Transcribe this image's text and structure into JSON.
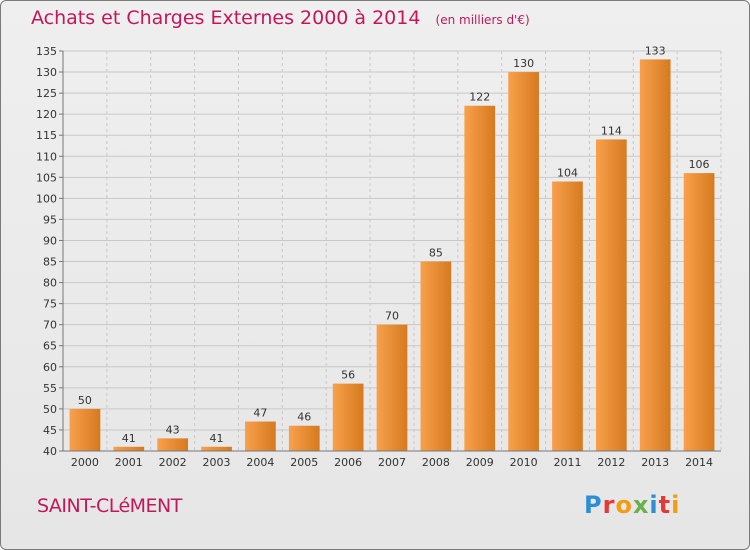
{
  "header": {
    "title": "Achats et Charges Externes 2000 à 2014",
    "unit": "(en milliers d'€)"
  },
  "footer": {
    "commune": "SAINT-CLéMENT",
    "logo": "Proxiti"
  },
  "colors": {
    "bar_light": "#f8a04c",
    "bar_dark": "#d67a1f",
    "title": "#c2185b",
    "grid": "#c8c8c8"
  },
  "chart_data": {
    "type": "bar",
    "categories": [
      "2000",
      "2001",
      "2002",
      "2003",
      "2004",
      "2005",
      "2006",
      "2007",
      "2008",
      "2009",
      "2010",
      "2011",
      "2012",
      "2013",
      "2014"
    ],
    "values": [
      50,
      41,
      43,
      41,
      47,
      46,
      56,
      70,
      85,
      122,
      130,
      104,
      114,
      133,
      106
    ],
    "title": "Achats et Charges Externes 2000 à 2014",
    "subtitle": "(en milliers d'€)",
    "xlabel": "",
    "ylabel": "",
    "ylim": [
      40,
      135
    ],
    "ytick_step": 5,
    "grid": true,
    "data_labels": true
  }
}
